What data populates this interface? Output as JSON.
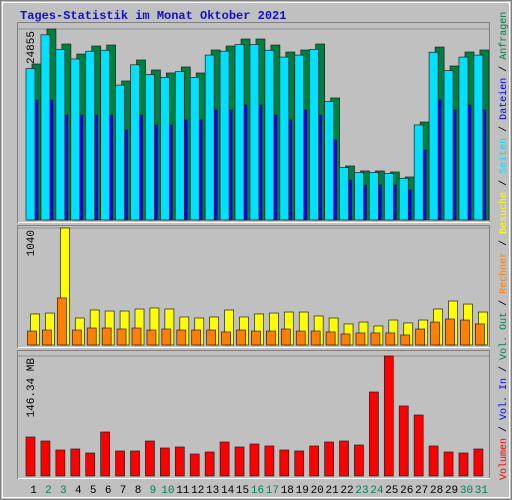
{
  "chart_data": [
    {
      "type": "bar",
      "title": "Tages-Statistik im Monat Oktober 2021",
      "ylim": [
        0,
        24855
      ],
      "yticks": [
        24855
      ],
      "series": [
        {
          "name": "Seiten",
          "color": "#00e0ff",
          "values": [
            19700,
            24100,
            22200,
            20950,
            21960,
            22090,
            17550,
            20200,
            18930,
            18560,
            19310,
            18560,
            21460,
            21960,
            22840,
            22840,
            22090,
            21200,
            21460,
            22210,
            15400,
            6820,
            6190,
            6190,
            6060,
            5430,
            12370,
            21830,
            19440,
            21200,
            21460
          ]
        },
        {
          "name": "Dateien",
          "color": "#0000ff",
          "values": [
            15616,
            15616,
            13664,
            13664,
            13664,
            13664,
            11712,
            13664,
            12362,
            12362,
            13013,
            13013,
            14314,
            14314,
            14965,
            14965,
            13664,
            13013,
            14314,
            13664,
            10410,
            5205,
            4555,
            4555,
            4555,
            3904,
            9109,
            15616,
            14314,
            14965,
            14314
          ]
        },
        {
          "name": "Anfragen",
          "color": "#008040",
          "values": [
            20300,
            24855,
            22900,
            21600,
            22640,
            22770,
            18090,
            20820,
            19520,
            19130,
            19910,
            19130,
            22120,
            22640,
            23550,
            23550,
            22770,
            21860,
            22120,
            22900,
            15880,
            7030,
            6380,
            6380,
            6250,
            5600,
            12750,
            22510,
            20040,
            21860,
            22120
          ]
        }
      ]
    },
    {
      "type": "bar",
      "ylim": [
        0,
        1040
      ],
      "yticks": [
        1040
      ],
      "series": [
        {
          "name": "Rechner",
          "color": "#ff8000",
          "values": [
            124,
            133,
            418,
            133,
            151,
            151,
            142,
            151,
            133,
            142,
            133,
            133,
            133,
            116,
            133,
            124,
            124,
            142,
            124,
            124,
            116,
            98,
            107,
            107,
            107,
            89,
            142,
            204,
            231,
            222,
            187
          ]
        },
        {
          "name": "Besuche",
          "color": "#ffff00",
          "values": [
            276,
            284,
            1040,
            240,
            311,
            302,
            302,
            320,
            329,
            320,
            249,
            240,
            249,
            311,
            249,
            276,
            284,
            293,
            293,
            258,
            240,
            187,
            204,
            169,
            222,
            196,
            222,
            320,
            391,
            364,
            293
          ]
        }
      ]
    },
    {
      "type": "bar",
      "ylim": [
        0,
        146.34
      ],
      "yticks": [
        {
          "value": 146.34,
          "label": "146.34 MB"
        }
      ],
      "categories": [
        "1",
        "2",
        "3",
        "4",
        "5",
        "6",
        "7",
        "8",
        "9",
        "10",
        "11",
        "12",
        "13",
        "14",
        "15",
        "16",
        "17",
        "18",
        "19",
        "20",
        "21",
        "22",
        "23",
        "24",
        "25",
        "26",
        "27",
        "28",
        "29",
        "30",
        "31"
      ],
      "category_colors": [
        "#000000",
        "#00805c",
        "#00805c",
        "#000000",
        "#000000",
        "#000000",
        "#000000",
        "#000000",
        "#00805c",
        "#00805c",
        "#000000",
        "#000000",
        "#000000",
        "#000000",
        "#000000",
        "#00805c",
        "#00805c",
        "#000000",
        "#000000",
        "#000000",
        "#000000",
        "#000000",
        "#00805c",
        "#00805c",
        "#000000",
        "#000000",
        "#000000",
        "#000000",
        "#000000",
        "#00805c",
        "#00805c"
      ],
      "series": [
        {
          "name": "Volumen",
          "color": "#ff0000",
          "values": [
            47.56,
            42.68,
            31.71,
            32.93,
            28.05,
            53.66,
            30.49,
            30.49,
            42.68,
            34.15,
            35.37,
            26.83,
            29.27,
            41.46,
            35.37,
            39.02,
            36.59,
            31.71,
            30.49,
            36.59,
            41.46,
            42.68,
            37.8,
            102.44,
            146.34,
            85.37,
            74.39,
            36.59,
            29.27,
            28.05,
            32.93
          ]
        },
        {
          "name": "Vol. In",
          "color": "#0000ff",
          "values": [
            0,
            0,
            0,
            0,
            0,
            0,
            0,
            0,
            0,
            0,
            0,
            0,
            0,
            0,
            0,
            0,
            0,
            0,
            0,
            0,
            0,
            0,
            0,
            0,
            0,
            0,
            0,
            0,
            0,
            0,
            0
          ]
        },
        {
          "name": "Vol. Out",
          "color": "#00805c",
          "values": [
            0,
            0,
            0,
            0,
            0,
            0,
            0,
            0,
            0,
            0,
            0,
            0,
            0,
            0,
            0,
            0,
            0,
            0,
            0,
            0,
            0,
            0,
            0,
            0,
            0,
            0,
            0,
            0,
            0,
            0,
            0
          ]
        }
      ]
    }
  ],
  "legend_separator": "/"
}
